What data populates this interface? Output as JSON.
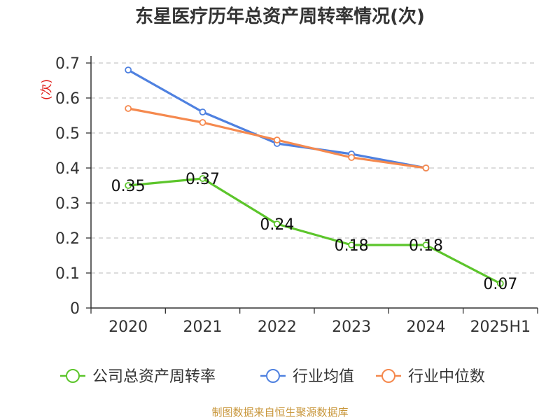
{
  "chart_data": {
    "type": "line",
    "title": "东星医疗历年总资产周转率情况(次)",
    "ylabel": "(次)",
    "xlabel": "",
    "categories": [
      "2020",
      "2021",
      "2022",
      "2023",
      "2024",
      "2025H1"
    ],
    "ylim": [
      0,
      0.7
    ],
    "yticks": [
      "0",
      "0.1",
      "0.2",
      "0.3",
      "0.4",
      "0.5",
      "0.6",
      "0.7"
    ],
    "grid": true,
    "legend_position": "bottom",
    "series": [
      {
        "name": "公司总资产周转率",
        "color": "#5cc52b",
        "values": [
          0.35,
          0.37,
          0.24,
          0.18,
          0.18,
          0.07
        ],
        "labels": [
          "0.35",
          "0.37",
          "0.24",
          "0.18",
          "0.18",
          "0.07"
        ]
      },
      {
        "name": "行业均值",
        "color": "#4f81e0",
        "values": [
          0.68,
          0.56,
          0.47,
          0.44,
          0.4,
          null
        ]
      },
      {
        "name": "行业中位数",
        "color": "#f5894e",
        "values": [
          0.57,
          0.53,
          0.48,
          0.43,
          0.4,
          null
        ]
      }
    ]
  },
  "source_text": "制图数据来自恒生聚源数据库"
}
